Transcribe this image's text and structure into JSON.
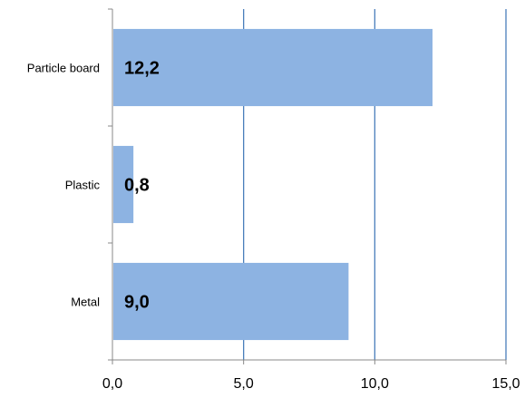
{
  "chart_data": {
    "type": "bar",
    "orientation": "horizontal",
    "categories": [
      "Particle board",
      "Plastic",
      "Metal"
    ],
    "values": [
      12.2,
      0.8,
      9.0
    ],
    "data_labels": [
      "12,2",
      "0,8",
      "9,0"
    ],
    "x_ticks": [
      0,
      5,
      10,
      15
    ],
    "x_tick_labels": [
      "0,0",
      "5,0",
      "10,0",
      "15,0"
    ],
    "xlim": [
      0,
      15
    ],
    "title": "",
    "xlabel": "",
    "ylabel": "",
    "grid": "vertical major gridlines",
    "legend": "none",
    "colors": {
      "bar": "#8db3e2",
      "grid": "#4a7ebb",
      "axis": "#888888"
    }
  }
}
